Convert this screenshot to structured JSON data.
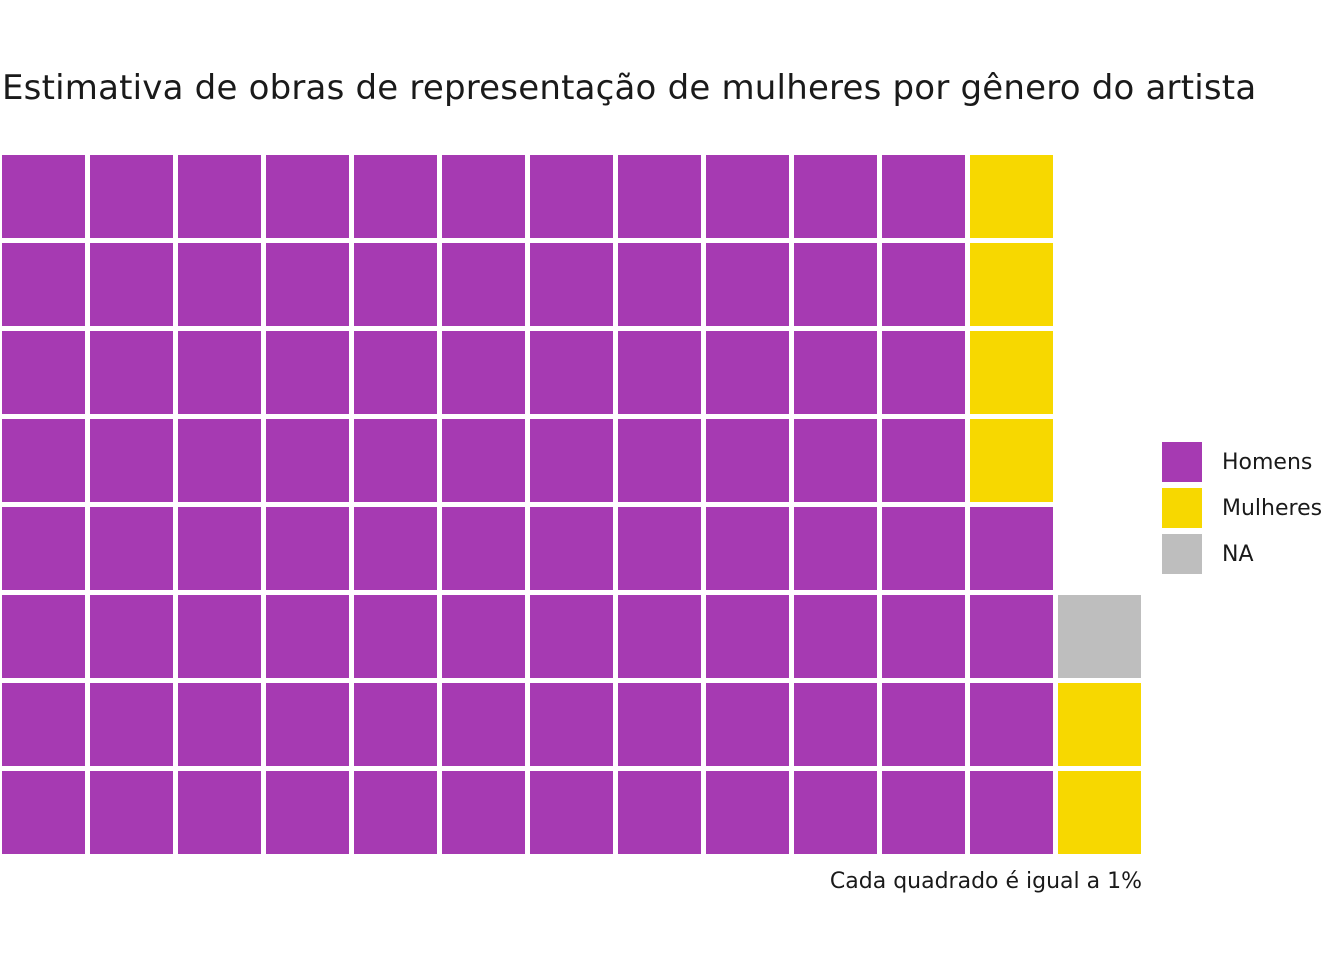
{
  "chart_data": {
    "type": "waffle",
    "title": "Estimativa de obras de representação de mulheres por gênero do artista",
    "caption": "Cada quadrado é igual a 1%",
    "rows": 8,
    "columns": 13,
    "fill_order": "column-wise, top to bottom",
    "categories": [
      "Homens",
      "Mulheres",
      "NA"
    ],
    "values": [
      92,
      6,
      1
    ],
    "colors": {
      "Homens": "#A63AB2",
      "Mulheres": "#F7D800",
      "NA": "#BEBEBE"
    },
    "cells": [
      "Homens",
      "Homens",
      "Homens",
      "Homens",
      "Homens",
      "Homens",
      "Homens",
      "Homens",
      "Homens",
      "Homens",
      "Homens",
      "Homens",
      "Homens",
      "Homens",
      "Homens",
      "Homens",
      "Homens",
      "Homens",
      "Homens",
      "Homens",
      "Homens",
      "Homens",
      "Homens",
      "Homens",
      "Homens",
      "Homens",
      "Homens",
      "Homens",
      "Homens",
      "Homens",
      "Homens",
      "Homens",
      "Homens",
      "Homens",
      "Homens",
      "Homens",
      "Homens",
      "Homens",
      "Homens",
      "Homens",
      "Homens",
      "Homens",
      "Homens",
      "Homens",
      "Homens",
      "Homens",
      "Homens",
      "Homens",
      "Homens",
      "Homens",
      "Homens",
      "Homens",
      "Homens",
      "Homens",
      "Homens",
      "Homens",
      "Homens",
      "Homens",
      "Homens",
      "Homens",
      "Homens",
      "Homens",
      "Homens",
      "Homens",
      "Homens",
      "Homens",
      "Homens",
      "Homens",
      "Homens",
      "Homens",
      "Homens",
      "Homens",
      "Homens",
      "Homens",
      "Homens",
      "Homens",
      "Homens",
      "Homens",
      "Homens",
      "Homens",
      "Homens",
      "Homens",
      "Homens",
      "Homens",
      "Homens",
      "Homens",
      "Homens",
      "Homens",
      "Mulheres",
      "Mulheres",
      "Mulheres",
      "Mulheres",
      "Homens",
      "Homens",
      "Homens",
      "Homens",
      null,
      null,
      null,
      null,
      null,
      "NA",
      "Mulheres",
      "Mulheres"
    ],
    "legend": {
      "position": "right",
      "items": [
        "Homens",
        "Mulheres",
        "NA"
      ]
    }
  }
}
